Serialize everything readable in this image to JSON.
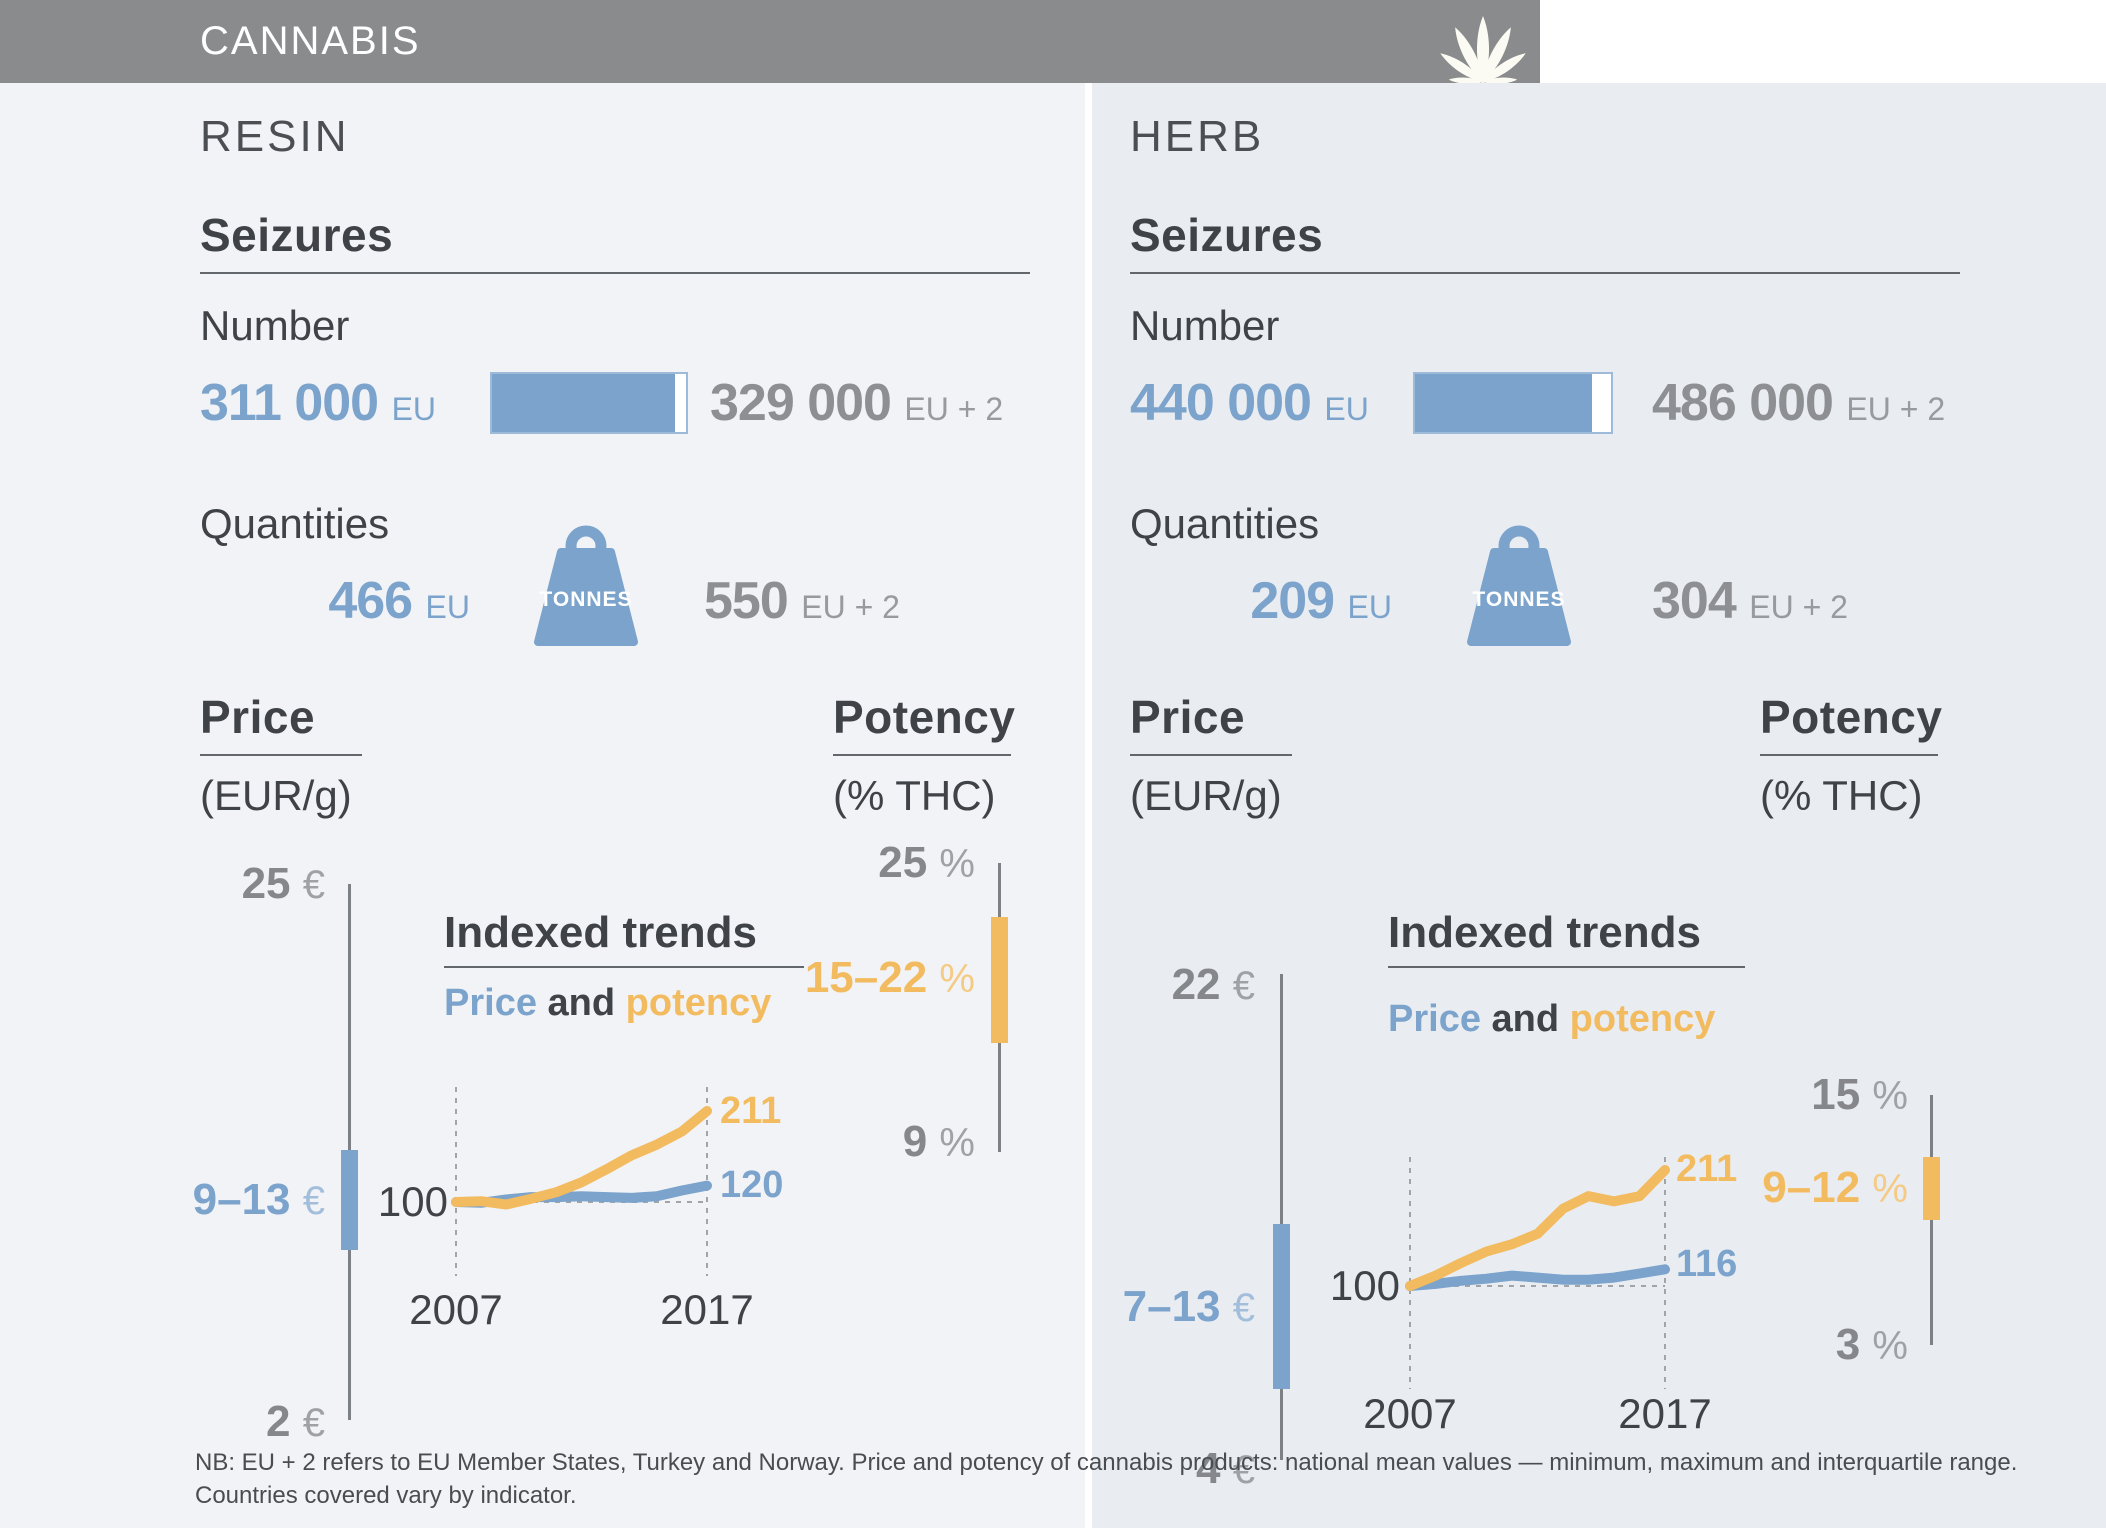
{
  "header": {
    "title": "CANNABIS"
  },
  "resin": {
    "title": "RESIN",
    "seizures": {
      "heading": "Seizures",
      "number_label": "Number",
      "number_eu": "311 000",
      "number_eu_suffix": "EU",
      "number_eu2": "329 000",
      "number_eu2_suffix": "EU + 2",
      "quantities_label": "Quantities",
      "qty_eu": "466",
      "qty_eu_suffix": "EU",
      "qty_unit": "TONNES",
      "qty_eu2": "550",
      "qty_eu2_suffix": "EU + 2"
    },
    "price": {
      "heading": "Price",
      "unit": "(EUR/g)",
      "max": "25",
      "max_sym": "€",
      "range": "9–13",
      "range_sym": "€",
      "min": "2",
      "min_sym": "€"
    },
    "potency": {
      "heading": "Potency",
      "unit": "(% THC)",
      "max": "25",
      "max_sym": "%",
      "range": "15–22",
      "range_sym": "%",
      "min": "9",
      "min_sym": "%"
    },
    "trends": {
      "heading": "Indexed trends",
      "legend_price": "Price",
      "legend_and": "and",
      "legend_potency": "potency",
      "baseline": "100",
      "year_start": "2007",
      "year_end": "2017",
      "price_end": "120",
      "potency_end": "211"
    }
  },
  "herb": {
    "title": "HERB",
    "seizures": {
      "heading": "Seizures",
      "number_label": "Number",
      "number_eu": "440 000",
      "number_eu_suffix": "EU",
      "number_eu2": "486 000",
      "number_eu2_suffix": "EU + 2",
      "quantities_label": "Quantities",
      "qty_eu": "209",
      "qty_eu_suffix": "EU",
      "qty_unit": "TONNES",
      "qty_eu2": "304",
      "qty_eu2_suffix": "EU + 2"
    },
    "price": {
      "heading": "Price",
      "unit": "(EUR/g)",
      "max": "22",
      "max_sym": "€",
      "range": "7–13",
      "range_sym": "€",
      "min": "4",
      "min_sym": "€"
    },
    "potency": {
      "heading": "Potency",
      "unit": "(% THC)",
      "max": "15",
      "max_sym": "%",
      "range": "9–12",
      "range_sym": "%",
      "min": "3",
      "min_sym": "%"
    },
    "trends": {
      "heading": "Indexed trends",
      "legend_price": "Price",
      "legend_and": "and",
      "legend_potency": "potency",
      "baseline": "100",
      "year_start": "2007",
      "year_end": "2017",
      "price_end": "116",
      "potency_end": "211"
    }
  },
  "note_line1": "NB: EU + 2 refers to EU Member States, Turkey and Norway. Price and potency of cannabis products: national mean values — minimum, maximum and interquartile range.",
  "note_line2": "Countries covered vary by indicator.",
  "colors": {
    "blue": "#7ba3cb",
    "yellow": "#f2bb5f",
    "header_gray": "#8a8b8d"
  },
  "chart_data": [
    {
      "type": "bar",
      "title": "Cannabis resin seizures — number",
      "categories": [
        "EU",
        "EU + 2"
      ],
      "values": [
        311000,
        329000
      ]
    },
    {
      "type": "bar",
      "title": "Cannabis herb seizures — number",
      "categories": [
        "EU",
        "EU + 2"
      ],
      "values": [
        440000,
        486000
      ]
    },
    {
      "type": "bar",
      "title": "Cannabis resin seizures — quantities (tonnes)",
      "categories": [
        "EU",
        "EU + 2"
      ],
      "values": [
        466,
        550
      ]
    },
    {
      "type": "bar",
      "title": "Cannabis herb seizures — quantities (tonnes)",
      "categories": [
        "EU",
        "EU + 2"
      ],
      "values": [
        209,
        304
      ]
    },
    {
      "type": "line",
      "title": "Resin indexed trends, price and potency (2007 = 100)",
      "x": [
        2007,
        2008,
        2009,
        2010,
        2011,
        2012,
        2013,
        2014,
        2015,
        2016,
        2017
      ],
      "baseline": 100,
      "x_labels": [
        "2007",
        "2017"
      ],
      "legend": [
        "Price",
        "potency"
      ],
      "series": [
        {
          "name": "price",
          "color": "#7ba3cb",
          "values": [
            100,
            99,
            103,
            106,
            106,
            107,
            106,
            105,
            107,
            114,
            120
          ]
        },
        {
          "name": "potency",
          "color": "#f2bb5f",
          "values": [
            100,
            101,
            97,
            104,
            112,
            124,
            140,
            157,
            170,
            186,
            211
          ]
        }
      ]
    },
    {
      "type": "line",
      "title": "Herb indexed trends, price and potency (2007 = 100)",
      "x": [
        2007,
        2008,
        2009,
        2010,
        2011,
        2012,
        2013,
        2014,
        2015,
        2016,
        2017
      ],
      "baseline": 100,
      "x_labels": [
        "2007",
        "2017"
      ],
      "legend": [
        "Price",
        "potency"
      ],
      "series": [
        {
          "name": "price",
          "color": "#7ba3cb",
          "values": [
            100,
            102,
            105,
            107,
            110,
            108,
            106,
            106,
            108,
            112,
            116
          ]
        },
        {
          "name": "potency",
          "color": "#f2bb5f",
          "values": [
            100,
            110,
            122,
            133,
            140,
            150,
            174,
            186,
            181,
            186,
            211
          ]
        }
      ]
    },
    {
      "type": "range",
      "title": "Resin price (EUR/g)",
      "min": 2,
      "max": 25,
      "iqr": [
        9,
        13
      ]
    },
    {
      "type": "range",
      "title": "Resin potency (% THC)",
      "min": 9,
      "max": 25,
      "iqr": [
        15,
        22
      ]
    },
    {
      "type": "range",
      "title": "Herb price (EUR/g)",
      "min": 4,
      "max": 22,
      "iqr": [
        7,
        13
      ]
    },
    {
      "type": "range",
      "title": "Herb potency (% THC)",
      "min": 3,
      "max": 15,
      "iqr": [
        9,
        12
      ]
    }
  ]
}
